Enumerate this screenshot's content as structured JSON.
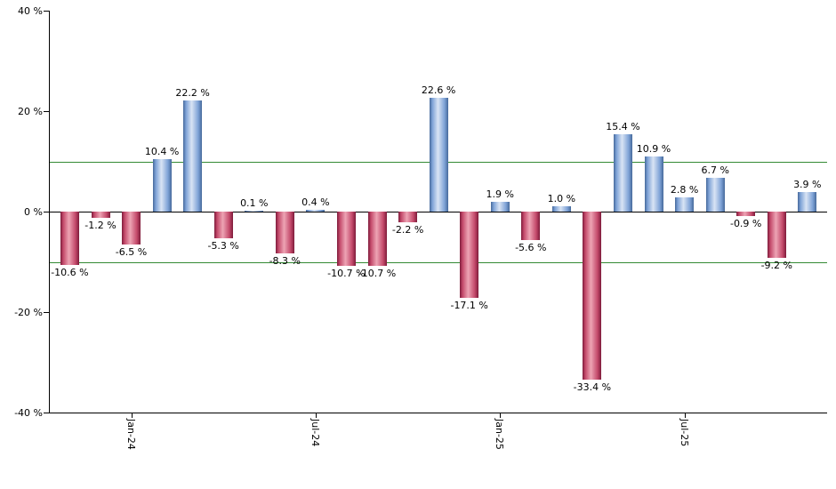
{
  "chart_data": {
    "type": "bar",
    "title": "",
    "xlabel": "",
    "ylabel": "",
    "ylim": [
      -40,
      40
    ],
    "grid": "horizontal-thresholds-only",
    "legend_position": "none",
    "y_ticks": [
      {
        "value": 40,
        "label": "40 %"
      },
      {
        "value": 20,
        "label": "20 %"
      },
      {
        "value": 0,
        "label": "0 %"
      },
      {
        "value": -20,
        "label": "-20 %"
      },
      {
        "value": -40,
        "label": "-40 %"
      }
    ],
    "x_ticks": [
      {
        "index": 2,
        "label": "Jan-24"
      },
      {
        "index": 8,
        "label": "Jul-24"
      },
      {
        "index": 14,
        "label": "Jan-25"
      },
      {
        "index": 20,
        "label": "Jul-25"
      }
    ],
    "reference_lines": [
      {
        "value": 10,
        "color": "#348a34"
      },
      {
        "value": -10,
        "color": "#348a34"
      },
      {
        "value": 0,
        "color": "#000000"
      }
    ],
    "bars": [
      {
        "value": -10.6,
        "label": "-10.6 %"
      },
      {
        "value": -1.2,
        "label": "-1.2 %"
      },
      {
        "value": -6.5,
        "label": "-6.5 %"
      },
      {
        "value": 10.4,
        "label": "10.4 %"
      },
      {
        "value": 22.2,
        "label": "22.2 %"
      },
      {
        "value": -5.3,
        "label": "-5.3 %"
      },
      {
        "value": 0.1,
        "label": "0.1 %"
      },
      {
        "value": -8.3,
        "label": "-8.3 %"
      },
      {
        "value": 0.4,
        "label": "0.4 %"
      },
      {
        "value": -10.7,
        "label": "-10.7 %"
      },
      {
        "value": -10.7,
        "label": "-10.7 %"
      },
      {
        "value": -2.2,
        "label": "-2.2 %"
      },
      {
        "value": 22.6,
        "label": "22.6 %"
      },
      {
        "value": -17.1,
        "label": "-17.1 %"
      },
      {
        "value": 1.9,
        "label": "1.9 %"
      },
      {
        "value": -5.6,
        "label": "-5.6 %"
      },
      {
        "value": 1.0,
        "label": "1.0 %"
      },
      {
        "value": -33.4,
        "label": "-33.4 %"
      },
      {
        "value": 15.4,
        "label": "15.4 %"
      },
      {
        "value": 10.9,
        "label": "10.9 %"
      },
      {
        "value": 2.8,
        "label": "2.8 %"
      },
      {
        "value": 6.7,
        "label": "6.7 %"
      },
      {
        "value": -0.9,
        "label": "-0.9 %"
      },
      {
        "value": -9.2,
        "label": "-9.2 %"
      },
      {
        "value": 3.9,
        "label": "3.9 %"
      }
    ],
    "colors": {
      "positive": "#7fa3d7",
      "positive_edge": "#46699b",
      "positive_light": "#d9e4f4",
      "negative": "#c44a6b",
      "negative_edge": "#7e1b3a",
      "negative_light": "#eda4b4",
      "threshold_green": "#348a34",
      "axis": "#000000",
      "background": "#ffffff"
    }
  }
}
